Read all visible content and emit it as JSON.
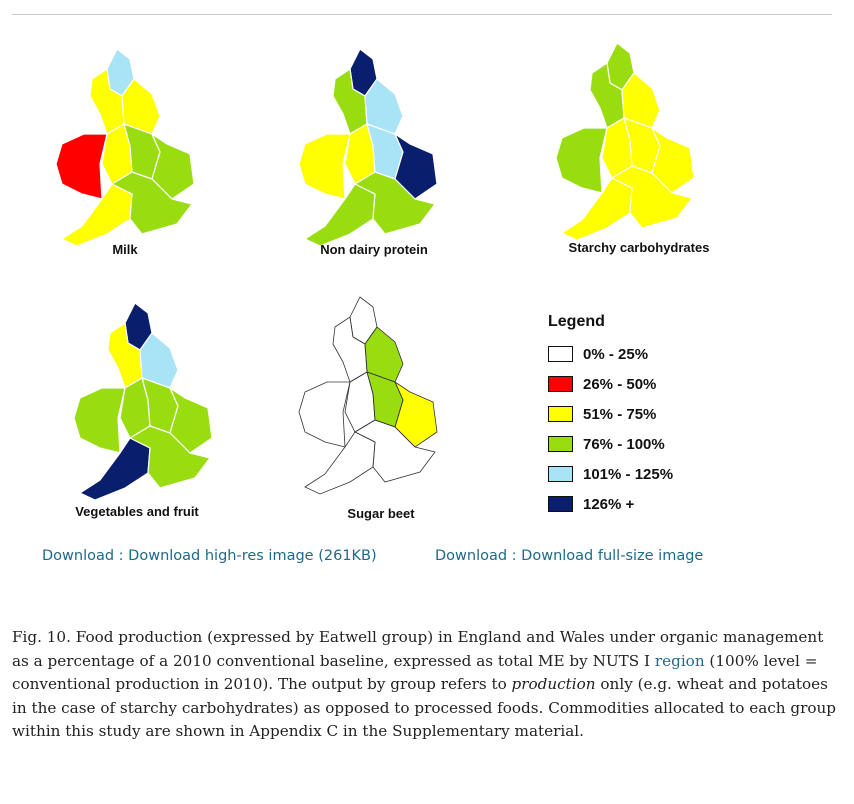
{
  "figure": {
    "maps": [
      {
        "key": "milk",
        "label": "Milk",
        "regions": {
          "ne": "#a9e4f6",
          "nw": "#ffff00",
          "yh": "#ffff00",
          "wa": "#ff0000",
          "wm": "#ffff00",
          "em": "#99dd11",
          "ea": "#99dd11",
          "sw": "#ffff00",
          "se": "#99dd11"
        }
      },
      {
        "key": "ndp",
        "label": "Non dairy protein",
        "regions": {
          "ne": "#0a1e6e",
          "nw": "#99dd11",
          "yh": "#a9e4f6",
          "wa": "#ffff00",
          "wm": "#ffff00",
          "em": "#a9e4f6",
          "ea": "#0a1e6e",
          "sw": "#99dd11",
          "se": "#99dd11"
        }
      },
      {
        "key": "starchy",
        "label": "Starchy carbohydrates",
        "regions": {
          "ne": "#99dd11",
          "nw": "#99dd11",
          "yh": "#ffff00",
          "wa": "#99dd11",
          "wm": "#ffff00",
          "em": "#ffff00",
          "ea": "#ffff00",
          "sw": "#ffff00",
          "se": "#ffff00"
        }
      },
      {
        "key": "veg",
        "label": "Vegetables and fruit",
        "regions": {
          "ne": "#0a1e6e",
          "nw": "#ffff00",
          "yh": "#a9e4f6",
          "wa": "#99dd11",
          "wm": "#99dd11",
          "em": "#99dd11",
          "ea": "#99dd11",
          "sw": "#0a1e6e",
          "se": "#99dd11"
        }
      },
      {
        "key": "sugar",
        "label": "Sugar beet",
        "regions": {
          "ne": "#ffffff",
          "nw": "#ffffff",
          "yh": "#99dd11",
          "wa": "#ffffff",
          "wm": "#ffffff",
          "em": "#99dd11",
          "ea": "#ffff00",
          "sw": "#ffffff",
          "se": "#ffffff"
        }
      }
    ],
    "legend": {
      "title": "Legend",
      "items": [
        {
          "label": "0% - 25%",
          "color": "#ffffff"
        },
        {
          "label": "26% - 50%",
          "color": "#ff0000"
        },
        {
          "label": "51% - 75%",
          "color": "#ffff00"
        },
        {
          "label": "76% - 100%",
          "color": "#99dd11"
        },
        {
          "label": "101% - 125%",
          "color": "#a9e4f6"
        },
        {
          "label": "126% +",
          "color": "#0a1e6e"
        }
      ]
    }
  },
  "downloads": {
    "high_res": "Download : Download high-res image (261KB)",
    "full_size": "Download : Download full-size image"
  },
  "caption": {
    "part1": "Fig. 10. Food production (expressed by Eatwell group) in England and Wales under organic management as a percentage of a 2010 conventional baseline, expressed as total ME by NUTS I ",
    "link": "region",
    "part2": " (100% level = conventional production in 2010). The output by group refers to ",
    "emph": "production",
    "part3": " only (e.g. wheat and potatoes in the case of starchy carbohydrates) as opposed to processed foods. Commodities allocated to each group within this study are shown in Appendix C in the Supplementary material."
  }
}
